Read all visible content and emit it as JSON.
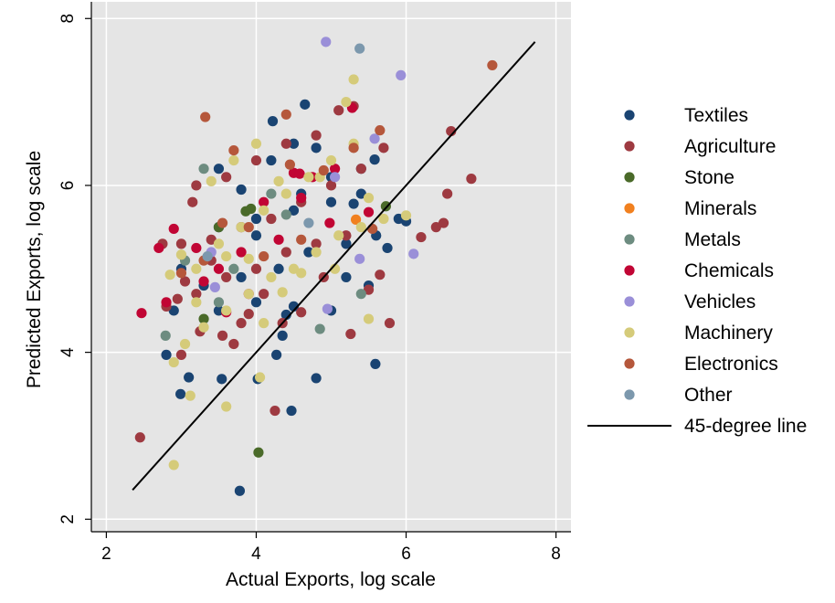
{
  "chart_data": {
    "type": "scatter",
    "xlabel": "Actual Exports, log scale",
    "ylabel": "Predicted Exports, log scale",
    "xlim": [
      1.8,
      8.2
    ],
    "ylim": [
      1.85,
      8.2
    ],
    "xticks": [
      "2",
      "4",
      "6",
      "8"
    ],
    "yticks": [
      "2",
      "4",
      "6",
      "8"
    ],
    "grid": true,
    "legend_position": "right",
    "reference_line": {
      "name": "45-degree line",
      "x": [
        2.35,
        7.72
      ],
      "y": [
        2.35,
        7.72
      ],
      "color": "#000000"
    },
    "series": [
      {
        "name": "Textiles",
        "color": "#1a4472",
        "points": [
          [
            3.78,
            2.34
          ],
          [
            4.47,
            3.3
          ],
          [
            5.59,
            3.86
          ],
          [
            2.99,
            3.5
          ],
          [
            3.1,
            3.7
          ],
          [
            3.54,
            3.68
          ],
          [
            4.02,
            3.68
          ],
          [
            4.8,
            3.69
          ],
          [
            4.27,
            3.97
          ],
          [
            2.8,
            3.97
          ],
          [
            4.35,
            4.2
          ],
          [
            3.5,
            4.5
          ],
          [
            4.0,
            4.6
          ],
          [
            4.5,
            4.55
          ],
          [
            5.0,
            4.5
          ],
          [
            5.5,
            4.8
          ],
          [
            3.3,
            4.8
          ],
          [
            3.8,
            4.9
          ],
          [
            4.3,
            5.0
          ],
          [
            4.7,
            5.2
          ],
          [
            5.2,
            5.3
          ],
          [
            5.6,
            5.4
          ],
          [
            3.5,
            5.5
          ],
          [
            4.0,
            5.6
          ],
          [
            4.5,
            5.7
          ],
          [
            5.0,
            5.8
          ],
          [
            5.4,
            5.9
          ],
          [
            3.5,
            6.2
          ],
          [
            4.2,
            6.3
          ],
          [
            4.5,
            6.5
          ],
          [
            4.65,
            6.97
          ],
          [
            4.22,
            6.77
          ],
          [
            5.0,
            6.1
          ],
          [
            5.4,
            6.2
          ],
          [
            5.9,
            5.6
          ],
          [
            5.75,
            5.25
          ],
          [
            3.8,
            5.95
          ],
          [
            4.0,
            5.4
          ],
          [
            3.0,
            5.0
          ],
          [
            2.9,
            4.5
          ],
          [
            4.6,
            5.9
          ],
          [
            4.4,
            4.45
          ],
          [
            5.2,
            4.9
          ],
          [
            6.0,
            5.57
          ],
          [
            5.3,
            5.78
          ],
          [
            5.58,
            6.31
          ],
          [
            4.8,
            6.45
          ]
        ]
      },
      {
        "name": "Agriculture",
        "color": "#9e3a41",
        "points": [
          [
            2.45,
            2.98
          ],
          [
            4.25,
            3.3
          ],
          [
            3.0,
            3.97
          ],
          [
            3.55,
            4.2
          ],
          [
            3.8,
            4.35
          ],
          [
            4.35,
            4.35
          ],
          [
            5.78,
            4.35
          ],
          [
            2.8,
            4.55
          ],
          [
            3.2,
            4.7
          ],
          [
            3.6,
            4.9
          ],
          [
            4.0,
            5.0
          ],
          [
            4.4,
            5.2
          ],
          [
            4.8,
            5.3
          ],
          [
            5.2,
            5.4
          ],
          [
            3.0,
            5.3
          ],
          [
            3.4,
            5.1
          ],
          [
            3.8,
            5.5
          ],
          [
            4.2,
            5.6
          ],
          [
            4.6,
            5.8
          ],
          [
            5.0,
            6.0
          ],
          [
            5.4,
            6.2
          ],
          [
            3.2,
            6.0
          ],
          [
            3.6,
            6.1
          ],
          [
            4.0,
            6.3
          ],
          [
            4.4,
            6.5
          ],
          [
            4.8,
            6.6
          ],
          [
            5.1,
            6.9
          ],
          [
            5.3,
            6.95
          ],
          [
            6.2,
            5.38
          ],
          [
            6.4,
            5.5
          ],
          [
            6.5,
            5.55
          ],
          [
            6.55,
            5.9
          ],
          [
            6.6,
            6.65
          ],
          [
            6.87,
            6.08
          ],
          [
            5.65,
            4.93
          ],
          [
            4.6,
            4.48
          ],
          [
            5.26,
            4.22
          ],
          [
            3.9,
            4.46
          ],
          [
            2.95,
            4.64
          ],
          [
            3.25,
            4.25
          ],
          [
            3.15,
            5.8
          ],
          [
            3.4,
            5.35
          ],
          [
            3.7,
            4.1
          ],
          [
            4.1,
            4.7
          ],
          [
            4.9,
            4.9
          ],
          [
            5.5,
            4.75
          ],
          [
            5.7,
            6.45
          ],
          [
            2.75,
            5.3
          ],
          [
            3.05,
            4.85
          ]
        ]
      },
      {
        "name": "Stone",
        "color": "#4a6a29",
        "points": [
          [
            4.03,
            2.8
          ],
          [
            3.3,
            4.4
          ],
          [
            3.5,
            5.5
          ],
          [
            3.93,
            5.72
          ],
          [
            3.86,
            5.69
          ],
          [
            5.73,
            5.75
          ]
        ]
      },
      {
        "name": "Minerals",
        "color": "#f1801f",
        "points": [
          [
            5.33,
            5.59
          ]
        ]
      },
      {
        "name": "Metals",
        "color": "#6d8c80",
        "points": [
          [
            4.85,
            4.28
          ],
          [
            2.79,
            4.2
          ],
          [
            3.3,
            6.2
          ],
          [
            3.5,
            4.6
          ],
          [
            4.2,
            5.9
          ],
          [
            5.4,
            4.7
          ],
          [
            3.05,
            5.1
          ],
          [
            3.7,
            5.0
          ],
          [
            4.4,
            5.65
          ]
        ]
      },
      {
        "name": "Chemicals",
        "color": "#c10534",
        "points": [
          [
            2.47,
            4.47
          ],
          [
            2.8,
            4.6
          ],
          [
            2.9,
            5.48
          ],
          [
            2.7,
            5.25
          ],
          [
            3.2,
            5.25
          ],
          [
            3.5,
            5.0
          ],
          [
            3.8,
            5.2
          ],
          [
            4.1,
            5.8
          ],
          [
            4.5,
            6.15
          ],
          [
            4.75,
            6.1
          ],
          [
            5.05,
            6.2
          ],
          [
            5.28,
            6.93
          ],
          [
            5.5,
            5.68
          ],
          [
            3.6,
            4.48
          ],
          [
            3.9,
            4.7
          ],
          [
            4.3,
            5.35
          ],
          [
            4.6,
            5.85
          ],
          [
            4.98,
            5.55
          ],
          [
            3.3,
            4.85
          ],
          [
            4.58,
            6.14
          ]
        ]
      },
      {
        "name": "Vehicles",
        "color": "#9a8fd8",
        "points": [
          [
            4.93,
            7.72
          ],
          [
            5.93,
            7.32
          ],
          [
            5.58,
            6.56
          ],
          [
            6.1,
            5.18
          ],
          [
            5.38,
            5.12
          ],
          [
            4.95,
            4.52
          ],
          [
            3.45,
            4.78
          ],
          [
            3.4,
            5.2
          ],
          [
            5.05,
            6.1
          ]
        ]
      },
      {
        "name": "Machinery",
        "color": "#d5cb7a",
        "points": [
          [
            2.9,
            2.65
          ],
          [
            3.12,
            3.48
          ],
          [
            3.6,
            3.35
          ],
          [
            4.05,
            3.7
          ],
          [
            2.9,
            3.88
          ],
          [
            3.05,
            4.1
          ],
          [
            3.3,
            4.3
          ],
          [
            3.6,
            4.5
          ],
          [
            3.9,
            4.7
          ],
          [
            4.2,
            4.9
          ],
          [
            4.5,
            5.0
          ],
          [
            4.8,
            5.2
          ],
          [
            5.1,
            5.4
          ],
          [
            5.4,
            5.5
          ],
          [
            5.7,
            5.6
          ],
          [
            6.0,
            5.64
          ],
          [
            3.2,
            5.0
          ],
          [
            3.5,
            5.3
          ],
          [
            3.8,
            5.5
          ],
          [
            4.1,
            5.7
          ],
          [
            4.4,
            5.9
          ],
          [
            4.7,
            6.1
          ],
          [
            5.0,
            6.3
          ],
          [
            5.3,
            6.5
          ],
          [
            3.4,
            6.05
          ],
          [
            3.7,
            6.3
          ],
          [
            4.0,
            6.5
          ],
          [
            5.2,
            7.0
          ],
          [
            5.3,
            7.27
          ],
          [
            4.3,
            6.05
          ],
          [
            4.6,
            4.95
          ],
          [
            5.5,
            4.4
          ],
          [
            4.1,
            4.35
          ],
          [
            3.2,
            4.6
          ],
          [
            2.85,
            4.93
          ],
          [
            3.0,
            5.17
          ],
          [
            3.9,
            5.12
          ],
          [
            4.35,
            4.72
          ],
          [
            4.85,
            6.1
          ],
          [
            5.05,
            5.0
          ],
          [
            5.5,
            5.85
          ],
          [
            3.6,
            5.15
          ]
        ]
      },
      {
        "name": "Electronics",
        "color": "#b5573b",
        "points": [
          [
            7.15,
            7.44
          ],
          [
            3.32,
            6.82
          ],
          [
            3.7,
            6.42
          ],
          [
            4.4,
            6.85
          ],
          [
            5.3,
            6.45
          ],
          [
            5.65,
            6.66
          ],
          [
            4.45,
            6.25
          ],
          [
            4.9,
            6.18
          ],
          [
            3.55,
            5.55
          ],
          [
            3.9,
            5.5
          ],
          [
            4.1,
            5.15
          ],
          [
            3.0,
            4.95
          ],
          [
            3.3,
            5.1
          ],
          [
            5.55,
            5.48
          ],
          [
            4.6,
            5.35
          ]
        ]
      },
      {
        "name": "Other",
        "color": "#7c98ad",
        "points": [
          [
            5.38,
            7.64
          ],
          [
            3.35,
            5.15
          ],
          [
            4.7,
            5.55
          ]
        ]
      }
    ]
  }
}
